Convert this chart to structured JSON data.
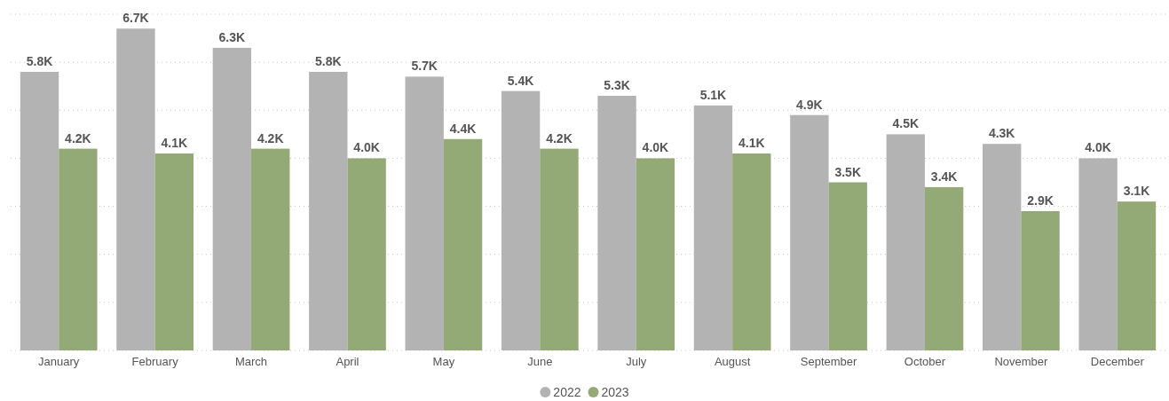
{
  "chart_data": {
    "type": "bar",
    "categories": [
      "January",
      "February",
      "March",
      "April",
      "May",
      "June",
      "July",
      "August",
      "September",
      "October",
      "November",
      "December"
    ],
    "series": [
      {
        "name": "2022",
        "color": "#b3b3b3",
        "values": [
          5.8,
          6.7,
          6.3,
          5.8,
          5.7,
          5.4,
          5.3,
          5.1,
          4.9,
          4.5,
          4.3,
          4.0
        ],
        "value_labels": [
          "5.8K",
          "6.7K",
          "6.3K",
          "5.8K",
          "5.7K",
          "5.4K",
          "5.3K",
          "5.1K",
          "4.9K",
          "4.5K",
          "4.3K",
          "4.0K"
        ]
      },
      {
        "name": "2023",
        "color": "#93aa77",
        "values": [
          4.2,
          4.1,
          4.2,
          4.0,
          4.4,
          4.2,
          4.0,
          4.1,
          3.5,
          3.4,
          2.9,
          3.1
        ],
        "value_labels": [
          "4.2K",
          "4.1K",
          "4.2K",
          "4.0K",
          "4.4K",
          "4.2K",
          "4.0K",
          "4.1K",
          "3.5K",
          "3.4K",
          "2.9K",
          "3.1K"
        ]
      }
    ],
    "ylim": [
      0,
      7
    ],
    "yticks": [
      {
        "value": 0,
        "label": null
      },
      {
        "value": 1,
        "label": null
      },
      {
        "value": 2,
        "label": null
      },
      {
        "value": 3,
        "label": null
      },
      {
        "value": 4,
        "label": null
      },
      {
        "value": 5,
        "label": null
      },
      {
        "value": 6,
        "label": null
      },
      {
        "value": 7,
        "label": null
      }
    ],
    "tick_labels": "x",
    "grid": "y",
    "legend": "bottom"
  }
}
